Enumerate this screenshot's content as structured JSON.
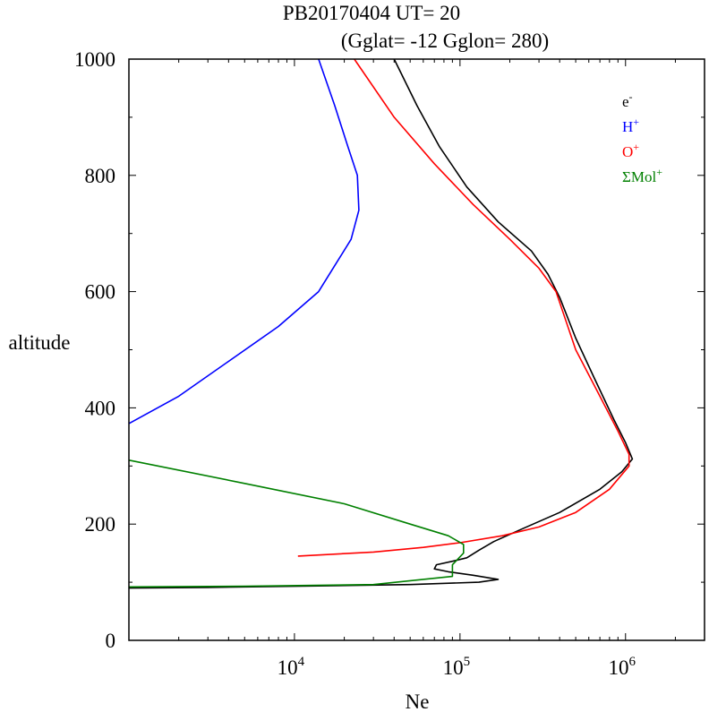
{
  "chart_data": {
    "type": "line",
    "title": "PB20170404   UT=  20",
    "subtitle": "(Gglat= -12   Gglon=  280)",
    "xlabel": "Ne",
    "ylabel": "altitude",
    "xscale": "log",
    "xlim": [
      1000,
      3000000
    ],
    "ylim": [
      0,
      1000
    ],
    "y_ticks": [
      "0",
      "200",
      "400",
      "600",
      "800",
      "1000"
    ],
    "x_ticks": [
      {
        "value": 10000,
        "base": "10",
        "exp": "4"
      },
      {
        "value": 100000,
        "base": "10",
        "exp": "5"
      },
      {
        "value": 1000000,
        "base": "10",
        "exp": "6"
      }
    ],
    "grid": false,
    "legend_position": "top-right",
    "series": [
      {
        "name": "e-",
        "label_base": "e",
        "label_sup": "-",
        "color": "#000000",
        "points": [
          [
            1000,
            90
          ],
          [
            3000,
            91
          ],
          [
            10000,
            93
          ],
          [
            50000,
            96
          ],
          [
            130000,
            100
          ],
          [
            170000,
            105
          ],
          [
            120000,
            112
          ],
          [
            85000,
            118
          ],
          [
            70000,
            123
          ],
          [
            72000,
            130
          ],
          [
            90000,
            136
          ],
          [
            110000,
            142
          ],
          [
            130000,
            155
          ],
          [
            160000,
            170
          ],
          [
            230000,
            190
          ],
          [
            400000,
            220
          ],
          [
            700000,
            260
          ],
          [
            950000,
            290
          ],
          [
            1100000,
            312
          ],
          [
            1000000,
            340
          ],
          [
            850000,
            380
          ],
          [
            650000,
            450
          ],
          [
            500000,
            520
          ],
          [
            400000,
            590
          ],
          [
            340000,
            630
          ],
          [
            270000,
            670
          ],
          [
            170000,
            720
          ],
          [
            110000,
            780
          ],
          [
            75000,
            850
          ],
          [
            55000,
            920
          ],
          [
            40000,
            1000
          ]
        ]
      },
      {
        "name": "H+",
        "label_base": "H",
        "label_sup": "+",
        "color": "#0000ff",
        "points": [
          [
            1000,
            373
          ],
          [
            2000,
            420
          ],
          [
            4000,
            480
          ],
          [
            8000,
            540
          ],
          [
            14000,
            600
          ],
          [
            18000,
            650
          ],
          [
            22000,
            690
          ],
          [
            24500,
            740
          ],
          [
            24000,
            800
          ],
          [
            21000,
            850
          ],
          [
            17500,
            920
          ],
          [
            14000,
            1000
          ]
        ]
      },
      {
        "name": "O+",
        "label_base": "O",
        "label_sup": "+",
        "color": "#ff0000",
        "points": [
          [
            10500,
            145
          ],
          [
            30000,
            152
          ],
          [
            60000,
            160
          ],
          [
            100000,
            168
          ],
          [
            180000,
            180
          ],
          [
            300000,
            195
          ],
          [
            500000,
            220
          ],
          [
            800000,
            260
          ],
          [
            1050000,
            300
          ],
          [
            1050000,
            320
          ],
          [
            900000,
            360
          ],
          [
            700000,
            420
          ],
          [
            500000,
            500
          ],
          [
            380000,
            600
          ],
          [
            300000,
            640
          ],
          [
            200000,
            690
          ],
          [
            120000,
            750
          ],
          [
            70000,
            820
          ],
          [
            40000,
            900
          ],
          [
            23000,
            1000
          ]
        ]
      },
      {
        "name": "ΣMol+",
        "label_base": "ΣMol",
        "label_sup": "+",
        "color": "#008000",
        "points": [
          [
            1000,
            92
          ],
          [
            5000,
            93
          ],
          [
            30000,
            96
          ],
          [
            90000,
            110
          ],
          [
            90000,
            130
          ],
          [
            105000,
            150
          ],
          [
            105000,
            165
          ],
          [
            85000,
            180
          ],
          [
            50000,
            200
          ],
          [
            20000,
            235
          ],
          [
            5000,
            270
          ],
          [
            1000,
            310
          ]
        ]
      }
    ]
  }
}
